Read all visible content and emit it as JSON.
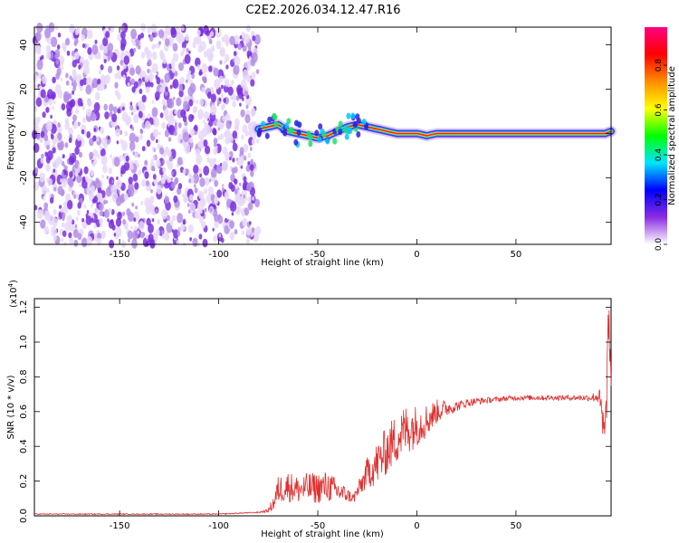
{
  "title": "C2E2.2026.034.12.47.R16",
  "chart_data": [
    {
      "id": "spectrogram",
      "type": "heatmap",
      "xlabel": "Height of straight line (km)",
      "ylabel": "Frequency (Hz)",
      "xlim": [
        -193,
        98
      ],
      "ylim": [
        -50,
        48
      ],
      "xticks": [
        -150,
        -100,
        -50,
        0,
        50
      ],
      "yticks": [
        -40,
        -20,
        0,
        20,
        40
      ],
      "colorbar": {
        "label": "Normalized spectral amplitude",
        "range": [
          0,
          0.97
        ],
        "ticks": [
          "0.0",
          "0.2",
          "0.4",
          "0.6",
          "0.8"
        ],
        "colors": [
          "#ffffff",
          "#8a2be2",
          "#0000ff",
          "#00e5ff",
          "#00ff00",
          "#ffff00",
          "#ff8c00",
          "#ff0000",
          "#ff0080"
        ]
      },
      "regions": [
        {
          "name": "noise",
          "x_range": [
            -193,
            -80
          ],
          "f_range": [
            -50,
            48
          ],
          "amplitude": 0.05
        },
        {
          "name": "signal-track",
          "x_range": [
            -80,
            98
          ],
          "f_center": 0,
          "amplitude": 0.9
        }
      ],
      "track": {
        "x": [
          -80,
          -75,
          -70,
          -65,
          -60,
          -55,
          -50,
          -45,
          -40,
          -35,
          -30,
          -25,
          -20,
          -15,
          -10,
          -5,
          0,
          5,
          10,
          20,
          40,
          60,
          80,
          95,
          98
        ],
        "f": [
          2,
          3,
          4,
          1,
          0,
          -1,
          -2,
          -1,
          1,
          3,
          4,
          3,
          2,
          1,
          0,
          0,
          0,
          -1,
          0,
          0,
          0,
          0,
          0,
          0,
          1
        ]
      }
    },
    {
      "id": "snr",
      "type": "line",
      "xlabel": "Height of straight line (km)",
      "ylabel": "SNR (10 * v/v)",
      "y_scale_label": "(x10",
      "y_scale_exp": "4",
      "xlim": [
        -193,
        98
      ],
      "ylim": [
        0,
        1.25
      ],
      "xticks": [
        -150,
        -100,
        -50,
        0,
        50
      ],
      "yticks": [
        "0.0",
        "0.2",
        "0.4",
        "0.6",
        "0.8",
        "1.0",
        "1.2"
      ],
      "series": [
        {
          "color": "#e03030",
          "x": [
            -193,
            -150,
            -100,
            -80,
            -75,
            -72,
            -70,
            -65,
            -60,
            -55,
            -50,
            -45,
            -40,
            -35,
            -32,
            -30,
            -28,
            -25,
            -20,
            -15,
            -10,
            -5,
            0,
            5,
            10,
            15,
            20,
            25,
            30,
            40,
            50,
            60,
            70,
            80,
            88,
            92,
            94,
            95,
            96,
            97,
            98
          ],
          "y": [
            0.01,
            0.01,
            0.01,
            0.02,
            0.03,
            0.08,
            0.15,
            0.17,
            0.15,
            0.16,
            0.16,
            0.17,
            0.14,
            0.12,
            0.1,
            0.14,
            0.18,
            0.25,
            0.3,
            0.38,
            0.45,
            0.5,
            0.52,
            0.55,
            0.6,
            0.62,
            0.63,
            0.65,
            0.66,
            0.67,
            0.68,
            0.68,
            0.68,
            0.68,
            0.68,
            0.69,
            0.5,
            0.4,
            0.9,
            1.1,
            0.7
          ],
          "noise": [
            0.003,
            0.003,
            0.003,
            0.003,
            0.01,
            0.05,
            0.08,
            0.09,
            0.08,
            0.09,
            0.09,
            0.09,
            0.07,
            0.04,
            0.03,
            0.05,
            0.06,
            0.09,
            0.13,
            0.14,
            0.15,
            0.15,
            0.12,
            0.1,
            0.07,
            0.05,
            0.03,
            0.025,
            0.02,
            0.015,
            0.015,
            0.015,
            0.015,
            0.015,
            0.02,
            0.05,
            0.15,
            0.2,
            0.25,
            0.15,
            0.05
          ]
        }
      ]
    }
  ]
}
